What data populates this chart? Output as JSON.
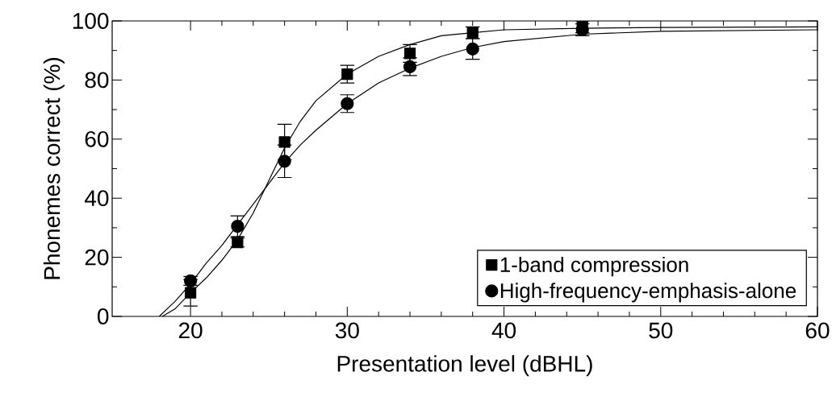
{
  "chart_data": {
    "type": "scatter",
    "xlabel": "Presentation level (dBHL)",
    "ylabel": "Phonemes correct (%)",
    "xlim": [
      15,
      60
    ],
    "ylim": [
      0,
      100
    ],
    "xticks": [
      20,
      30,
      40,
      50,
      60
    ],
    "yticks": [
      0,
      20,
      40,
      60,
      80,
      100
    ],
    "grid": false,
    "legend": "bottom right",
    "series": [
      {
        "name": "1-band compression",
        "color": "#000000",
        "marker": "square",
        "x": [
          20,
          23,
          26,
          30,
          34,
          38,
          45
        ],
        "values": [
          8,
          25,
          59,
          82,
          89,
          96,
          98
        ],
        "errors": [
          4.5,
          1.5,
          6,
          3,
          3,
          2,
          2
        ]
      },
      {
        "name": "High-frequency-emphasis-alone",
        "color": "#000000",
        "marker": "circle",
        "x": [
          20,
          23,
          26,
          30,
          34,
          38,
          45
        ],
        "values": [
          12,
          30.5,
          52.5,
          72,
          84.5,
          90.5,
          97
        ],
        "errors": [
          1.5,
          3.5,
          5.5,
          3,
          3,
          3.5,
          2
        ]
      },
      {
        "type": "line",
        "color": "#000000",
        "marker": "none",
        "x": [
          18.2,
          19,
          20,
          21,
          22,
          23,
          24,
          25,
          26,
          27,
          28,
          30,
          32,
          34,
          36,
          38,
          40,
          45,
          50,
          60
        ],
        "values": [
          0,
          2.5,
          8,
          13,
          19,
          26,
          35,
          46,
          57,
          66,
          73,
          82,
          88,
          92,
          95,
          96,
          97,
          97.5,
          97.8,
          98
        ]
      },
      {
        "type": "line",
        "color": "#000000",
        "marker": "none",
        "x": [
          18,
          19,
          20,
          21,
          22,
          23,
          24,
          25,
          26,
          27,
          28,
          30,
          32,
          34,
          36,
          38,
          40,
          45,
          50,
          60
        ],
        "values": [
          0,
          5,
          11,
          18,
          24,
          31,
          38,
          45,
          52,
          58,
          63,
          72,
          79,
          84,
          88,
          91,
          93,
          95.5,
          96.5,
          97
        ]
      }
    ]
  }
}
